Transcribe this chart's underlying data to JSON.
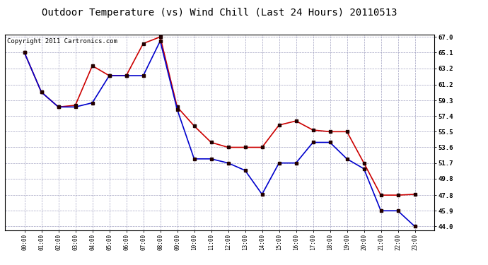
{
  "title": "Outdoor Temperature (vs) Wind Chill (Last 24 Hours) 20110513",
  "copyright": "Copyright 2011 Cartronics.com",
  "x_labels": [
    "00:00",
    "01:00",
    "02:00",
    "03:00",
    "04:00",
    "05:00",
    "06:00",
    "07:00",
    "08:00",
    "09:00",
    "10:00",
    "11:00",
    "12:00",
    "13:00",
    "14:00",
    "15:00",
    "16:00",
    "17:00",
    "18:00",
    "19:00",
    "20:00",
    "21:00",
    "22:00",
    "23:00"
  ],
  "temp_red": [
    65.1,
    60.3,
    58.5,
    58.7,
    63.5,
    62.3,
    62.3,
    66.2,
    67.0,
    58.5,
    56.2,
    54.2,
    53.6,
    53.6,
    53.6,
    56.3,
    56.8,
    55.7,
    55.5,
    55.5,
    51.7,
    47.8,
    47.8,
    47.9
  ],
  "temp_blue": [
    65.1,
    60.3,
    58.5,
    58.5,
    59.0,
    62.3,
    62.3,
    62.3,
    66.5,
    58.2,
    52.2,
    52.2,
    51.7,
    50.8,
    47.9,
    51.7,
    51.7,
    54.2,
    54.2,
    52.2,
    51.0,
    45.9,
    45.9,
    44.0
  ],
  "y_ticks": [
    44.0,
    45.9,
    47.8,
    49.8,
    51.7,
    53.6,
    55.5,
    57.4,
    59.3,
    61.2,
    63.2,
    65.1,
    67.0
  ],
  "y_min": 43.5,
  "y_max": 67.3,
  "line_color_red": "#cc0000",
  "line_color_blue": "#0000cc",
  "marker_color": "#220000",
  "bg_color": "#ffffff",
  "plot_bg_color": "#ffffff",
  "grid_color": "#9999bb",
  "title_fontsize": 10,
  "copyright_fontsize": 6.5
}
